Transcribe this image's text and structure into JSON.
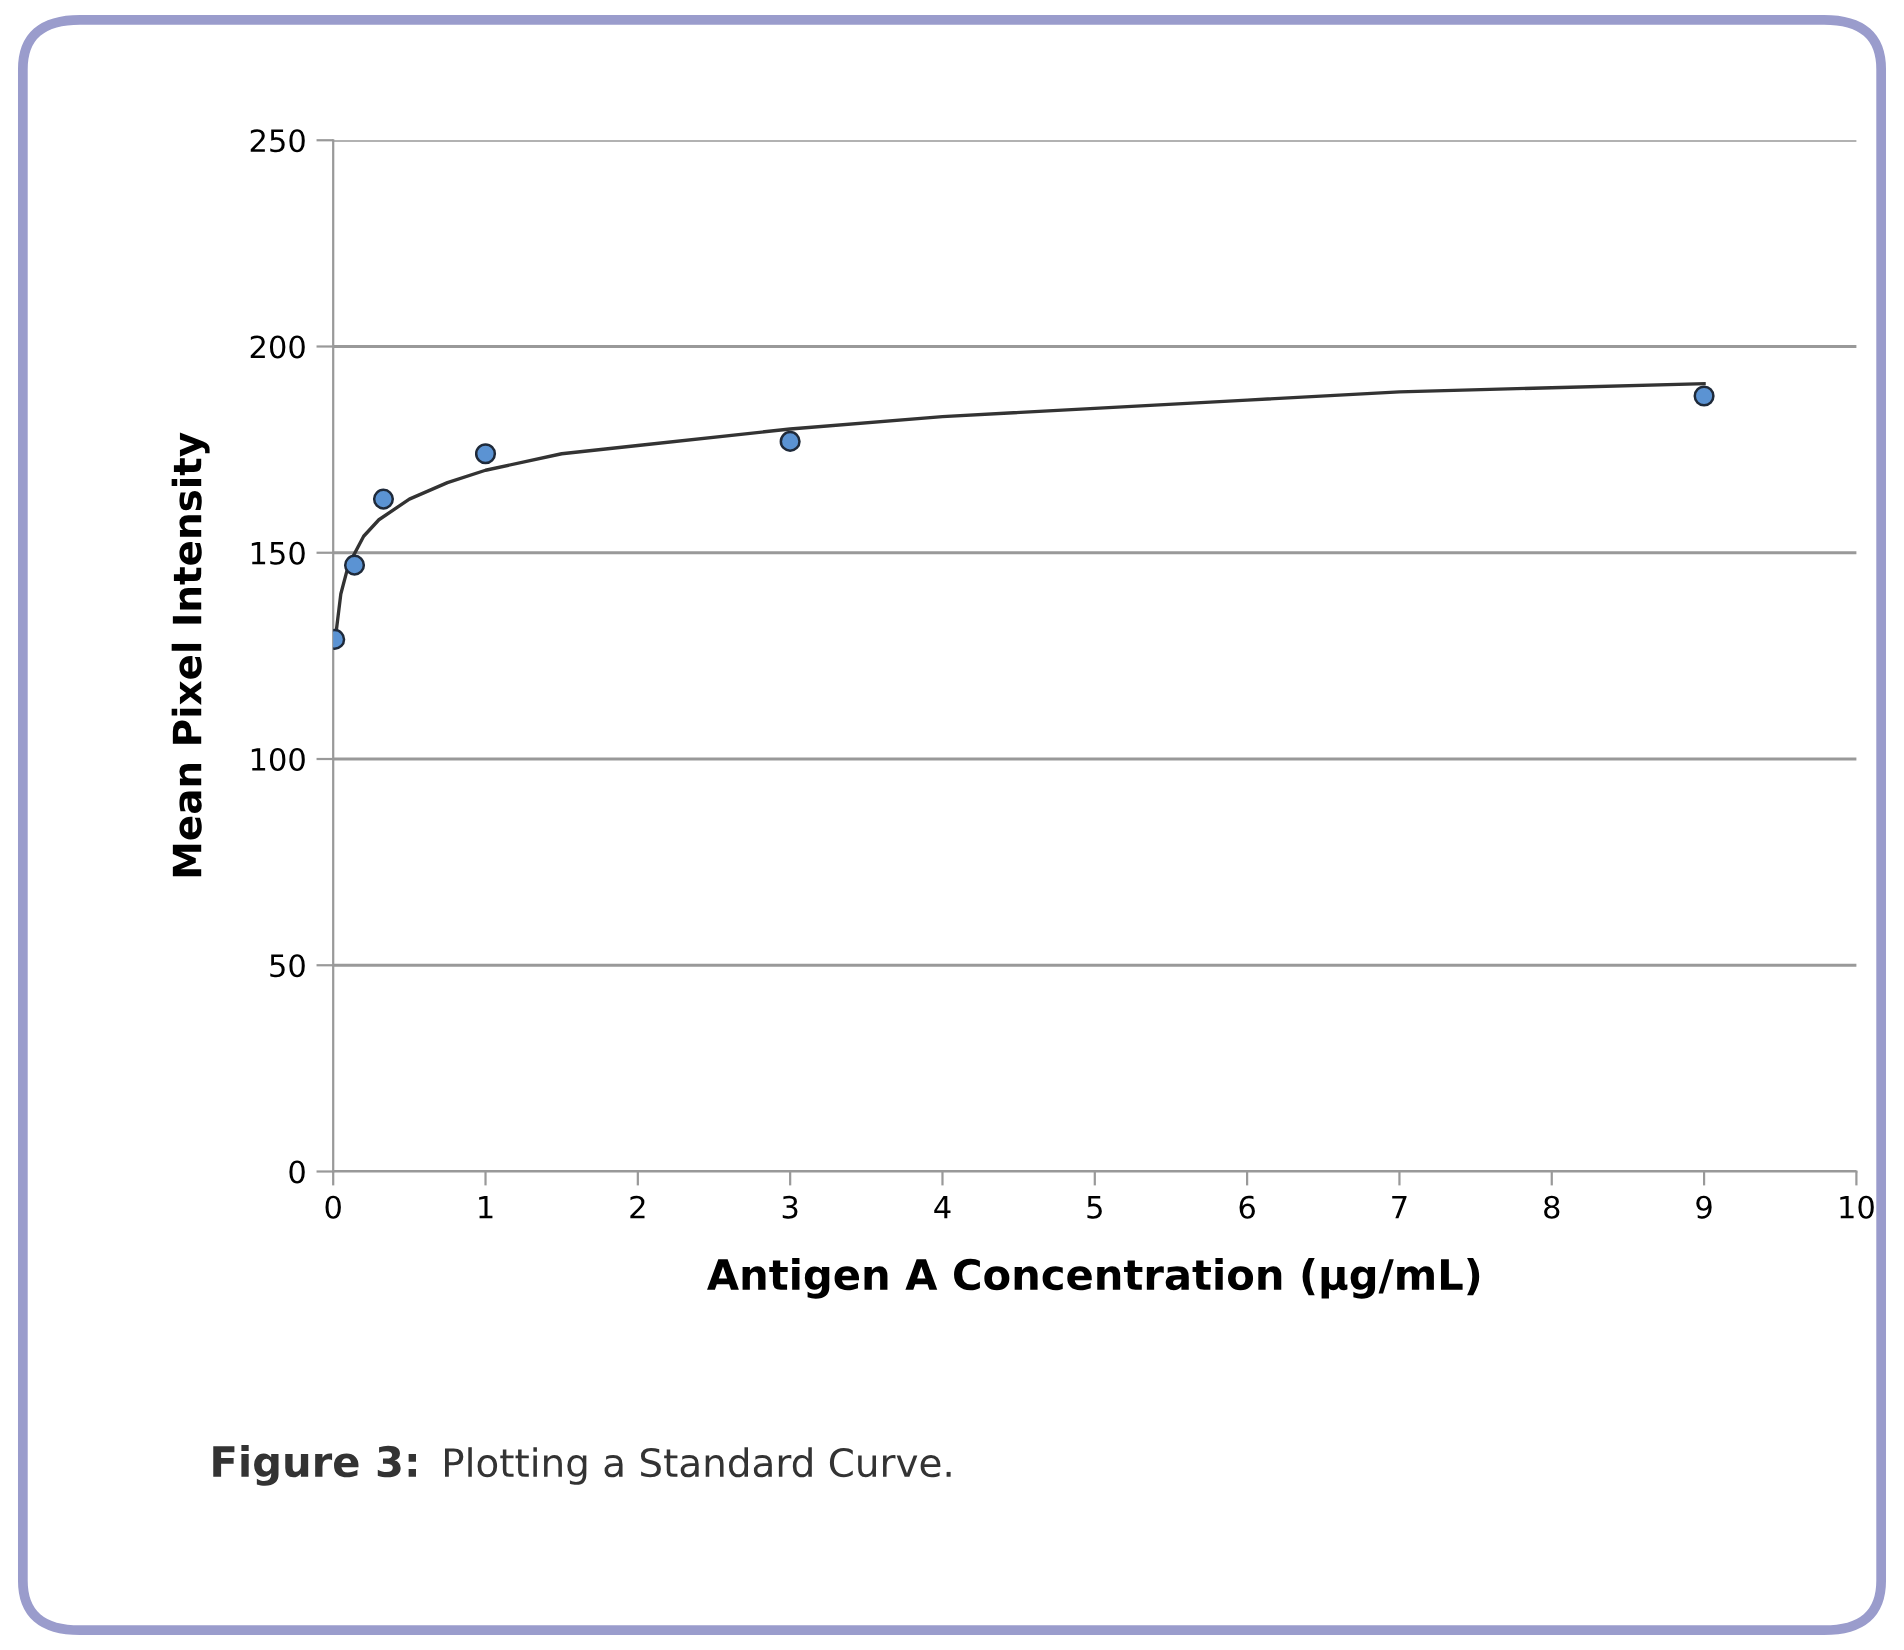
{
  "chart_data": {
    "type": "scatter",
    "xlabel": "Antigen A Concentration (µg/mL)",
    "ylabel": "Mean Pixel Intensity",
    "series": [
      {
        "color": "#5b93d3",
        "marker": "circle",
        "x": [
          0.01,
          0.14,
          0.33,
          1.0,
          3.0,
          9.0
        ],
        "values": [
          129,
          147,
          163,
          174,
          177,
          188
        ]
      },
      {
        "type": "line",
        "color": "#333333",
        "marker": "none",
        "line_style": "solid",
        "x": [
          0.02,
          0.05,
          0.1,
          0.2,
          0.3,
          0.5,
          0.75,
          1,
          1.5,
          2,
          3,
          4,
          5,
          6,
          7,
          8,
          9
        ],
        "values": [
          131,
          140,
          147,
          154,
          158,
          163,
          167,
          170,
          174,
          176,
          180,
          183,
          185,
          187,
          189,
          190,
          191
        ]
      }
    ],
    "xlim": [
      0,
      10
    ],
    "xticks": [
      0,
      1,
      2,
      3,
      4,
      5,
      6,
      7,
      8,
      9,
      10
    ],
    "ylim": [
      0,
      250
    ],
    "yticks": [
      0,
      50,
      100,
      150,
      200,
      250
    ],
    "grid": "y",
    "legend": false,
    "annotations": [
      "Figure 3:",
      "Plotting a Standard Curve."
    ]
  }
}
